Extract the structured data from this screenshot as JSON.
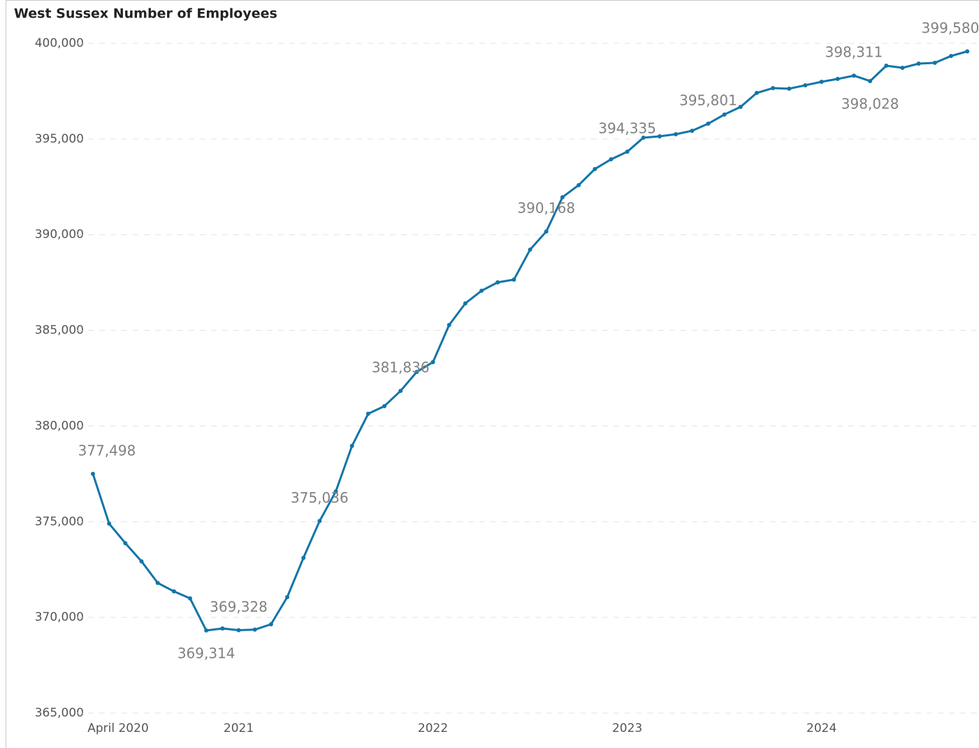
{
  "chart_data": {
    "type": "line",
    "title": "West Sussex Number of Employees",
    "categories": [
      "April 2020",
      null,
      null,
      null,
      null,
      null,
      null,
      null,
      null,
      "2021",
      null,
      null,
      null,
      null,
      null,
      null,
      null,
      null,
      null,
      null,
      null,
      "2022",
      null,
      null,
      null,
      null,
      null,
      null,
      null,
      null,
      null,
      null,
      null,
      "2023",
      null,
      null,
      null,
      null,
      null,
      null,
      null,
      null,
      null,
      null,
      null,
      "2024",
      null,
      null,
      null,
      null,
      null,
      null,
      null,
      null,
      null
    ],
    "series": [
      {
        "name": "Number of Employees",
        "color": "#1275a8",
        "values": [
          377498,
          374900,
          373880,
          372930,
          371800,
          371360,
          370990,
          369314,
          369420,
          369328,
          369360,
          369640,
          371060,
          373110,
          375036,
          376580,
          378960,
          380640,
          381040,
          381836,
          382830,
          383340,
          385280,
          386410,
          387070,
          387510,
          387650,
          389220,
          390168,
          391960,
          392590,
          393430,
          393940,
          394335,
          395070,
          395140,
          395250,
          395430,
          395801,
          396280,
          396680,
          397410,
          397660,
          397630,
          397810,
          397990,
          398140,
          398311,
          398028,
          398830,
          398720,
          398940,
          398980,
          399340,
          399580
        ],
        "value_labels": [
          "377,498",
          null,
          null,
          null,
          null,
          null,
          null,
          "369,314",
          null,
          "369,328",
          null,
          null,
          null,
          null,
          "375,036",
          null,
          null,
          null,
          null,
          "381,836",
          null,
          null,
          null,
          null,
          null,
          null,
          null,
          null,
          "390,168",
          null,
          null,
          null,
          null,
          "394,335",
          null,
          null,
          null,
          null,
          "395,801",
          null,
          null,
          null,
          null,
          null,
          null,
          null,
          null,
          "398,311",
          "398,028",
          null,
          null,
          null,
          null,
          null,
          "399,580"
        ]
      }
    ],
    "ylim": [
      365000,
      400000
    ],
    "yticks": [
      {
        "value": 365000,
        "label": "365,000"
      },
      {
        "value": 370000,
        "label": "370,000"
      },
      {
        "value": 375000,
        "label": "375,000"
      },
      {
        "value": 380000,
        "label": "380,000"
      },
      {
        "value": 385000,
        "label": "385,000"
      },
      {
        "value": 390000,
        "label": "390,000"
      },
      {
        "value": 395000,
        "label": "395,000"
      },
      {
        "value": 400000,
        "label": "400,000"
      }
    ],
    "grid": true
  }
}
